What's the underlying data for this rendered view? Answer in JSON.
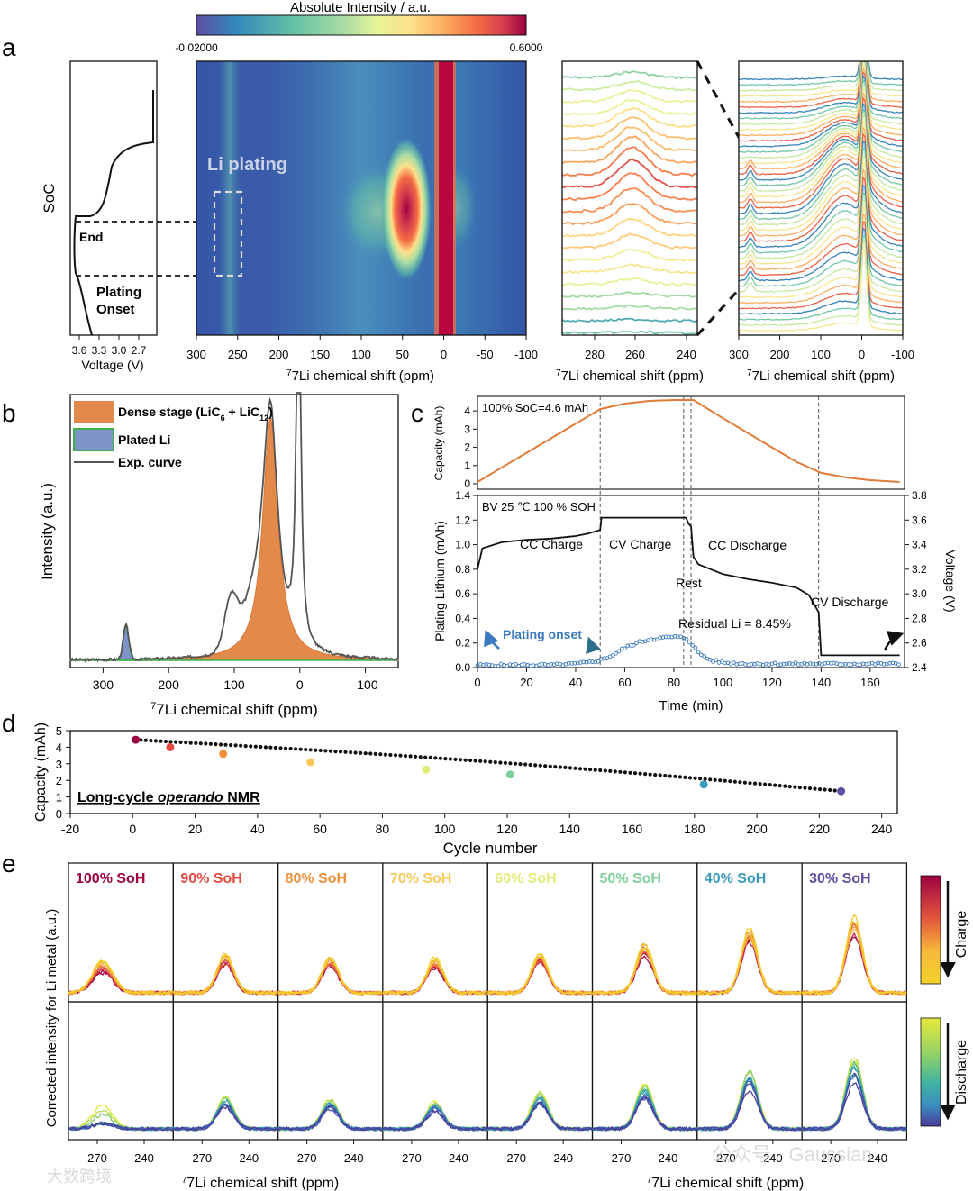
{
  "palette": [
    "#5e4fa2",
    "#3288bd",
    "#66c2a5",
    "#abdda4",
    "#e6f598",
    "#fee08b",
    "#fdae61",
    "#f46d43",
    "#d53e4f",
    "#9e0142"
  ],
  "charge_palette": [
    "#9e0142",
    "#c51b4a",
    "#e2583c",
    "#f08b3a",
    "#f6b93b",
    "#f2d22a"
  ],
  "discharge_palette": [
    "#e6ea3a",
    "#8fd06a",
    "#3fb3a0",
    "#3a8fbf",
    "#3b5fb0",
    "#4b3c9a"
  ],
  "panel_a": {
    "letter": "a",
    "colorbar": {
      "title": "Absolute Intensity / a.u.",
      "min_label": "-0.02000",
      "max_label": "0.6000"
    },
    "voltage_axis": {
      "ylabel": "SoC",
      "xlabel": "Voltage (V)",
      "ticks": [
        "3.6",
        "3.3",
        "3.0",
        "2.7"
      ]
    },
    "labels": {
      "end": "End",
      "onset_line1": "Plating",
      "onset_line2": "Onset",
      "li_plating": "Li plating"
    },
    "heatmap_axis": {
      "xlabel": "7Li chemical shift (ppm)",
      "ticks": [
        "300",
        "250",
        "200",
        "150",
        "100",
        "50",
        "0",
        "-50",
        "-100"
      ]
    },
    "zoom_axis": {
      "xlabel": "7Li chemical shift (ppm)",
      "ticks": [
        "280",
        "260",
        "240"
      ]
    },
    "stack_axis": {
      "xlabel": "7Li chemical shift (ppm)",
      "ticks": [
        "300",
        "200",
        "100",
        "0",
        "-100"
      ]
    }
  },
  "panel_b": {
    "letter": "b",
    "ylabel": "Intensity (a.u.)",
    "xlabel": "7Li chemical shift (ppm)",
    "xticks": [
      "300",
      "200",
      "100",
      "0",
      "-100"
    ],
    "legend": {
      "dense": "Dense stage (LiC6 + LiC12)",
      "dense_main": "Dense stage (LiC",
      "dense_sub1": "6",
      "dense_mid": " + LiC",
      "dense_sub2": "12",
      "dense_end": ")",
      "plated": "Plated Li",
      "exp": "Exp. curve"
    },
    "colors": {
      "dense": "#e38a4a",
      "plated": "#7f93c9",
      "plated_edge": "#3cb04a",
      "exp": "#555555"
    }
  },
  "panel_c": {
    "letter": "c",
    "top": {
      "ylabel": "Capacity (mAh)",
      "label": "100% SoC=4.6 mAh",
      "yticks": [
        "0",
        "1",
        "2",
        "3",
        "4"
      ],
      "color": "#e07b39"
    },
    "bottom": {
      "ylabel": "Plating Lithium (mAh)",
      "y2label": "Voltage (V)",
      "xlabel": "Time (min)",
      "label": "BV 25 ℃ 100 % SOH",
      "yticks": [
        "0.0",
        "0.2",
        "0.4",
        "0.6",
        "0.8",
        "1.0",
        "1.2",
        "1.4"
      ],
      "y2ticks": [
        "2.4",
        "2.6",
        "2.8",
        "3.0",
        "3.2",
        "3.4",
        "3.6",
        "3.8"
      ],
      "xticks": [
        "0",
        "20",
        "40",
        "60",
        "80",
        "100",
        "120",
        "140",
        "160"
      ],
      "annotations": {
        "cc_charge": "CC Charge",
        "cv_charge": "CV Charge",
        "cc_discharge": "CC Discharge",
        "rest": "Rest",
        "cv_discharge": "CV Discharge",
        "residual": "Residual Li = 8.45%",
        "onset": "Plating onset"
      },
      "onset_color": "#3a78c0"
    }
  },
  "panel_d": {
    "letter": "d",
    "ylabel": "Capacity (mAh)",
    "xlabel": "Cycle number",
    "label_main": "Long-cycle ",
    "label_italic": "operando",
    "label_end": " NMR",
    "xticks": [
      "-20",
      "0",
      "20",
      "40",
      "60",
      "80",
      "100",
      "120",
      "140",
      "160",
      "180",
      "200",
      "220",
      "240"
    ],
    "yticks": [
      "0",
      "1",
      "2",
      "3",
      "4",
      "5"
    ]
  },
  "panel_e": {
    "letter": "e",
    "ylabel": "Corrected intensity for Li metal (a.u.)",
    "xlabel": "7Li chemical shift (ppm)",
    "xticks": [
      "270",
      "240"
    ],
    "soh_labels": [
      "100% SoH",
      "90% SoH",
      "80% SoH",
      "70% SoH",
      "60% SoH",
      "50% SoH",
      "40% SoH",
      "30% SoH"
    ],
    "soh_colors": [
      "#9e0142",
      "#e2493f",
      "#f08f3c",
      "#f8c95a",
      "#e1ec7a",
      "#7fcf9a",
      "#3a9bbf",
      "#5b51a3"
    ],
    "charge_label": "Charge",
    "discharge_label": "Discharge"
  },
  "watermark": {
    "left": "大数跨境",
    "right": "公众号 · Gaussian"
  },
  "chart_data": [
    {
      "type": "heatmap",
      "title": "",
      "colorbar_label": "Absolute Intensity / a.u.",
      "colorbar_range": [
        -0.02,
        0.6
      ],
      "xlabel": "7Li chemical shift (ppm)",
      "x_range": [
        300,
        -100
      ],
      "ylabel": "SoC",
      "features": [
        {
          "name": "Li plating",
          "center_ppm": 265
        },
        {
          "name": "dense stage peak",
          "center_ppm": 45
        },
        {
          "name": "reference line",
          "center_ppm": 0
        }
      ]
    },
    {
      "type": "line",
      "xlabel": "Voltage (V)",
      "ylabel": "SoC",
      "x": [
        3.6,
        3.55,
        3.5,
        3.45,
        3.4,
        3.3,
        3.2,
        3.1,
        3.0,
        2.9,
        2.8,
        2.7,
        2.6,
        2.6
      ],
      "y": [
        1.0,
        0.95,
        0.9,
        0.82,
        0.72,
        0.62,
        0.55,
        0.5,
        0.47,
        0.45,
        0.43,
        0.42,
        0.42,
        0.75
      ]
    },
    {
      "type": "area",
      "xlabel": "7Li chemical shift (ppm)",
      "ylabel": "Intensity (a.u.)",
      "x_range": [
        350,
        -150
      ],
      "series": [
        {
          "name": "Dense stage (LiC6 + LiC12)",
          "peak_ppm": 45,
          "peak_height": 0.66
        },
        {
          "name": "Plated Li",
          "peak_ppm": 265,
          "peak_height": 0.13
        },
        {
          "name": "Exp. curve",
          "peak_ppm": 5,
          "peak_height": 1.0
        }
      ]
    },
    {
      "type": "line",
      "title": "100% SoC=4.6 mAh",
      "xlabel": "Time (min)",
      "ylabel": "Capacity (mAh)",
      "xlim": [
        0,
        174
      ],
      "ylim": [
        0,
        4.6
      ],
      "x": [
        0,
        10,
        20,
        30,
        40,
        50,
        60,
        70,
        80,
        88,
        100,
        110,
        120,
        130,
        140,
        150,
        160,
        172
      ],
      "y": [
        0.1,
        0.9,
        1.7,
        2.5,
        3.3,
        4.1,
        4.4,
        4.55,
        4.6,
        4.6,
        3.6,
        2.8,
        2.0,
        1.2,
        0.6,
        0.35,
        0.2,
        0.1
      ]
    },
    {
      "type": "line",
      "title": "BV 25 ℃ 100 % SOH",
      "xlabel": "Time (min)",
      "xlim": [
        0,
        174
      ],
      "series": [
        {
          "name": "Voltage (V)",
          "axis": "right",
          "ylim": [
            2.4,
            3.8
          ],
          "x": [
            0,
            2,
            10,
            20,
            30,
            40,
            45,
            50,
            50.5,
            85,
            86,
            87,
            88,
            90,
            100,
            110,
            120,
            130,
            135,
            139,
            140,
            172
          ],
          "y": [
            3.2,
            3.37,
            3.42,
            3.44,
            3.45,
            3.47,
            3.49,
            3.52,
            3.62,
            3.62,
            3.57,
            3.55,
            3.3,
            3.24,
            3.16,
            3.12,
            3.09,
            3.05,
            2.99,
            2.85,
            2.5,
            2.5
          ]
        },
        {
          "name": "Plating Lithium (mAh)",
          "axis": "left",
          "ylim": [
            0,
            1.4
          ],
          "x": [
            0,
            10,
            20,
            30,
            40,
            45,
            50,
            55,
            60,
            65,
            70,
            75,
            80,
            85,
            88,
            90,
            95,
            100,
            110,
            120,
            130,
            140,
            150,
            160,
            172
          ],
          "y": [
            0.02,
            0.02,
            0.02,
            0.02,
            0.03,
            0.04,
            0.06,
            0.1,
            0.16,
            0.2,
            0.23,
            0.24,
            0.25,
            0.24,
            0.18,
            0.12,
            0.06,
            0.04,
            0.03,
            0.03,
            0.03,
            0.03,
            0.03,
            0.03,
            0.03
          ]
        }
      ],
      "annotations": [
        "CC Charge",
        "CV Charge",
        "CC Discharge",
        "Rest",
        "CV Discharge",
        "Residual Li = 8.45%",
        "Plating onset"
      ],
      "vlines_min": [
        50,
        84,
        87,
        139
      ]
    },
    {
      "type": "scatter",
      "xlabel": "Cycle number",
      "ylabel": "Capacity (mAh)",
      "xlim": [
        -20,
        245
      ],
      "ylim": [
        0,
        5
      ],
      "x": [
        1,
        12,
        29,
        57,
        94,
        121,
        183,
        227
      ],
      "y": [
        4.45,
        4.0,
        3.6,
        3.1,
        2.65,
        2.35,
        1.75,
        1.35
      ],
      "labels": [
        "100% SoH",
        "90% SoH",
        "80% SoH",
        "70% SoH",
        "60% SoH",
        "50% SoH",
        "40% SoH",
        "30% SoH"
      ],
      "annotation": "Long-cycle operando NMR"
    },
    {
      "type": "line",
      "xlabel": "7Li chemical shift (ppm)",
      "ylabel": "Corrected intensity for Li metal (a.u.)",
      "panels": [
        "100% SoH",
        "90% SoH",
        "80% SoH",
        "70% SoH",
        "60% SoH",
        "50% SoH",
        "40% SoH",
        "30% SoH"
      ],
      "charge_peak_height": [
        0.3,
        0.55,
        0.5,
        0.45,
        0.6,
        0.75,
        1.0,
        1.2
      ],
      "discharge_peak_height": [
        0.3,
        0.55,
        0.5,
        0.45,
        0.6,
        0.75,
        1.0,
        1.2
      ],
      "peak_ppm": 262
    }
  ]
}
